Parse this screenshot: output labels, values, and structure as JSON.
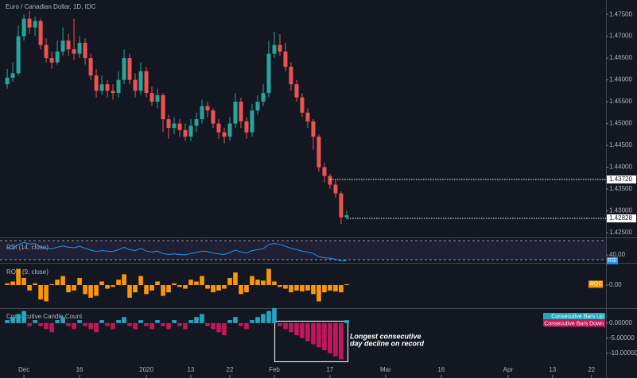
{
  "chart_data": [
    {
      "type": "candlestick",
      "title": "Euro / Canadian Dollar, 1D, IDC",
      "up_color": "#26a69a",
      "down_color": "#ef5350",
      "values": [
        [
          1.459,
          1.4625,
          1.458,
          1.4605
        ],
        [
          1.4605,
          1.464,
          1.4595,
          1.4615
        ],
        [
          1.4615,
          1.4725,
          1.461,
          1.47
        ],
        [
          1.47,
          1.475,
          1.469,
          1.474
        ],
        [
          1.474,
          1.4758,
          1.4705,
          1.472
        ],
        [
          1.472,
          1.4745,
          1.47,
          1.4735
        ],
        [
          1.4735,
          1.474,
          1.467,
          1.468
        ],
        [
          1.468,
          1.4695,
          1.464,
          1.465
        ],
        [
          1.465,
          1.4665,
          1.4625,
          1.464
        ],
        [
          1.464,
          1.469,
          1.4635,
          1.4665
        ],
        [
          1.4665,
          1.472,
          1.4655,
          1.469
        ],
        [
          1.469,
          1.4705,
          1.4655,
          1.467
        ],
        [
          1.467,
          1.474,
          1.4645,
          1.466
        ],
        [
          1.466,
          1.47,
          1.465,
          1.4685
        ],
        [
          1.4685,
          1.4695,
          1.4635,
          1.465
        ],
        [
          1.465,
          1.466,
          1.46,
          1.461
        ],
        [
          1.461,
          1.4625,
          1.456,
          1.4575
        ],
        [
          1.4575,
          1.461,
          1.4565,
          1.459
        ],
        [
          1.459,
          1.46,
          1.456,
          1.4575
        ],
        [
          1.4575,
          1.459,
          1.4555,
          1.457
        ],
        [
          1.457,
          1.462,
          1.456,
          1.46
        ],
        [
          1.46,
          1.467,
          1.459,
          1.465
        ],
        [
          1.465,
          1.466,
          1.459,
          1.46
        ],
        [
          1.46,
          1.4615,
          1.456,
          1.4575
        ],
        [
          1.4575,
          1.464,
          1.4565,
          1.462
        ],
        [
          1.462,
          1.463,
          1.456,
          1.457
        ],
        [
          1.457,
          1.4585,
          1.454,
          1.455
        ],
        [
          1.455,
          1.458,
          1.4535,
          1.4565
        ],
        [
          1.4565,
          1.457,
          1.448,
          1.451
        ],
        [
          1.451,
          1.452,
          1.4465,
          1.449
        ],
        [
          1.449,
          1.4515,
          1.4475,
          1.45
        ],
        [
          1.45,
          1.451,
          1.447,
          1.4485
        ],
        [
          1.4485,
          1.45,
          1.446,
          1.447
        ],
        [
          1.447,
          1.451,
          1.446,
          1.4495
        ],
        [
          1.4495,
          1.4525,
          1.448,
          1.451
        ],
        [
          1.451,
          1.4555,
          1.45,
          1.454
        ],
        [
          1.454,
          1.455,
          1.4515,
          1.453
        ],
        [
          1.453,
          1.4535,
          1.449,
          1.45
        ],
        [
          1.45,
          1.451,
          1.4465,
          1.448
        ],
        [
          1.448,
          1.449,
          1.4455,
          1.447
        ],
        [
          1.447,
          1.4515,
          1.446,
          1.45
        ],
        [
          1.45,
          1.457,
          1.449,
          1.455
        ],
        [
          1.455,
          1.456,
          1.449,
          1.4505
        ],
        [
          1.4505,
          1.4515,
          1.4465,
          1.448
        ],
        [
          1.448,
          1.4545,
          1.447,
          1.453
        ],
        [
          1.453,
          1.4565,
          1.452,
          1.455
        ],
        [
          1.455,
          1.459,
          1.454,
          1.457
        ],
        [
          1.457,
          1.469,
          1.456,
          1.466
        ],
        [
          1.466,
          1.471,
          1.465,
          1.468
        ],
        [
          1.468,
          1.4705,
          1.4655,
          1.4665
        ],
        [
          1.4665,
          1.4685,
          1.462,
          1.463
        ],
        [
          1.463,
          1.464,
          1.4575,
          1.459
        ],
        [
          1.459,
          1.46,
          1.455,
          1.456
        ],
        [
          1.456,
          1.457,
          1.4515,
          1.4525
        ],
        [
          1.4525,
          1.4535,
          1.449,
          1.4505
        ],
        [
          1.4505,
          1.451,
          1.444,
          1.447
        ],
        [
          1.447,
          1.4475,
          1.439,
          1.44
        ],
        [
          1.44,
          1.441,
          1.4365,
          1.438
        ],
        [
          1.438,
          1.4385,
          1.435,
          1.436
        ],
        [
          1.436,
          1.437,
          1.433,
          1.434
        ],
        [
          1.434,
          1.4345,
          1.427,
          1.4285
        ],
        [
          1.4285,
          1.43,
          1.428,
          1.429
        ]
      ],
      "ylim": [
        1.4241,
        1.4783
      ],
      "yticks": [
        {
          "value": 1.475,
          "label": "1.47500"
        },
        {
          "value": 1.47,
          "label": "1.47000"
        },
        {
          "value": 1.465,
          "label": "1.46500"
        },
        {
          "value": 1.46,
          "label": "1.46000"
        },
        {
          "value": 1.455,
          "label": "1.45500"
        },
        {
          "value": 1.45,
          "label": "1.45000"
        },
        {
          "value": 1.445,
          "label": "1.44500"
        },
        {
          "value": 1.44,
          "label": "1.44000"
        },
        {
          "value": 1.435,
          "label": "1.43500"
        },
        {
          "value": 1.43,
          "label": "1.43000"
        },
        {
          "value": 1.425,
          "label": "1.42500"
        }
      ],
      "xlim": [
        -1.3,
        107.6
      ],
      "xticks": [
        {
          "value": 3,
          "label": "Dec"
        },
        {
          "value": 13,
          "label": "16"
        },
        {
          "value": 25,
          "label": "2020"
        },
        {
          "value": 33,
          "label": "13"
        },
        {
          "value": 40,
          "label": "22"
        },
        {
          "value": 48,
          "label": "Feb"
        },
        {
          "value": 58,
          "label": "17"
        },
        {
          "value": 68,
          "label": "Mar"
        },
        {
          "value": 78,
          "label": "16"
        },
        {
          "value": 90,
          "label": "Apr"
        },
        {
          "value": 98,
          "label": "13"
        },
        {
          "value": 105,
          "label": "22"
        }
      ],
      "price_lines": [
        {
          "value": 1.4372,
          "label": "1.43720"
        },
        {
          "value": 1.42828,
          "label": "1.42828"
        }
      ]
    },
    {
      "type": "line",
      "title": "RSI (14, close)",
      "tag": "RSI",
      "color": "#2196f3",
      "values": [
        52,
        54,
        62,
        66,
        63,
        64,
        57,
        54,
        53,
        56,
        59,
        56,
        55,
        58,
        54,
        50,
        47,
        49,
        48,
        47,
        51,
        56,
        51,
        49,
        54,
        48,
        46,
        48,
        43,
        41,
        42,
        41,
        40,
        43,
        45,
        48,
        47,
        44,
        42,
        41,
        45,
        50,
        46,
        44,
        49,
        51,
        53,
        62,
        64,
        62,
        58,
        54,
        51,
        48,
        46,
        43,
        36,
        34,
        33,
        31,
        27,
        28
      ],
      "ylim": [
        25,
        75
      ],
      "yticks": [
        {
          "value": 40,
          "label": "40.00"
        }
      ],
      "levels": [
        70,
        30
      ]
    },
    {
      "type": "bar",
      "title": "ROC (9, close)",
      "tag": "ROC",
      "color": "#ff9800",
      "values": [
        0.1,
        0.2,
        0.9,
        0.4,
        -0.3,
        0.1,
        -0.8,
        -0.9,
        0.05,
        0.3,
        0.5,
        -0.4,
        -0.3,
        0.4,
        -0.5,
        -0.7,
        -0.6,
        0.2,
        -0.2,
        -0.1,
        0.3,
        0.6,
        -0.7,
        -0.4,
        0.5,
        -0.5,
        -0.3,
        0.2,
        -0.6,
        -0.4,
        0.1,
        -0.1,
        -0.2,
        0.3,
        0.2,
        0.5,
        -0.2,
        -0.4,
        -0.3,
        -0.2,
        0.4,
        0.7,
        -0.5,
        -0.4,
        0.5,
        0.3,
        0.25,
        0.9,
        0.2,
        -0.1,
        -0.2,
        -0.4,
        -0.3,
        -0.35,
        -0.3,
        -0.5,
        -0.9,
        -0.4,
        -0.3,
        -0.35,
        -0.4,
        0.05
      ],
      "ylim": [
        -1.1,
        1.1
      ],
      "yticks": [
        {
          "value": 0,
          "label": "0.00"
        }
      ]
    },
    {
      "type": "bar",
      "title": "Consecutive Candle Count",
      "series": [
        {
          "name": "Consecutive Bars Up",
          "color": "#22a7bd",
          "values": [
            1,
            2,
            3,
            4,
            null,
            1,
            null,
            null,
            null,
            1,
            2,
            null,
            null,
            1,
            null,
            null,
            null,
            1,
            null,
            null,
            1,
            2,
            null,
            null,
            1,
            null,
            null,
            1,
            null,
            null,
            1,
            null,
            null,
            1,
            2,
            3,
            null,
            null,
            null,
            null,
            1,
            2,
            null,
            null,
            1,
            2,
            3,
            4,
            5,
            null,
            null,
            null,
            null,
            null,
            null,
            null,
            null,
            null,
            null,
            null,
            null,
            1
          ]
        },
        {
          "name": "Consecutive Bars Down",
          "color": "#c2185b",
          "values": [
            null,
            null,
            null,
            null,
            -1,
            null,
            -1,
            -2,
            -3,
            null,
            null,
            -1,
            -2,
            null,
            -1,
            -2,
            -3,
            null,
            -1,
            -2,
            null,
            null,
            -1,
            -2,
            null,
            -1,
            -2,
            null,
            -1,
            -2,
            null,
            -1,
            -2,
            null,
            null,
            null,
            -1,
            -2,
            -3,
            -4,
            null,
            null,
            -1,
            -2,
            null,
            null,
            null,
            null,
            null,
            -1,
            -2,
            -3,
            -4,
            -5,
            -6,
            -7,
            -8,
            -9,
            -10,
            -11,
            -12,
            null
          ]
        }
      ],
      "ylim": [
        -16.6,
        3.9
      ],
      "yticks": [
        {
          "value": 0,
          "label": "0.00000"
        },
        {
          "value": -5,
          "label": "-5.00000"
        },
        {
          "value": -10,
          "label": "-10.00000"
        }
      ],
      "annotation": [
        "Longest consecutive",
        "day decline on record"
      ]
    }
  ]
}
